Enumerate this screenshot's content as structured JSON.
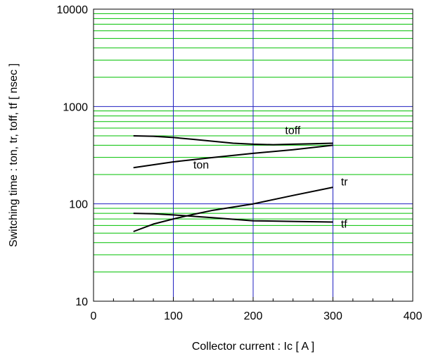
{
  "chart_data": {
    "type": "line",
    "title": "",
    "xlabel": "Collector current : Ic [ A ]",
    "ylabel": "Switching time : ton, tr, toff, tf [ nsec ]",
    "xlim": [
      0,
      400
    ],
    "ylim": [
      10,
      10000
    ],
    "y_scale": "log",
    "x_ticks": [
      0,
      100,
      200,
      300,
      400
    ],
    "x_tick_labels": [
      "0",
      "100",
      "200",
      "300",
      "400"
    ],
    "y_ticks": [
      10,
      100,
      1000,
      10000
    ],
    "y_tick_labels": [
      "10",
      "100",
      "1000",
      "10000"
    ],
    "grid": true,
    "major_grid_color": "#2020c0",
    "minor_grid_color": "#00c000",
    "series": [
      {
        "name": "toff",
        "color": "#000000",
        "x": [
          50,
          75,
          100,
          125,
          150,
          175,
          200,
          225,
          250,
          275,
          300
        ],
        "y": [
          500,
          495,
          480,
          460,
          440,
          420,
          410,
          405,
          410,
          415,
          420
        ]
      },
      {
        "name": "ton",
        "color": "#000000",
        "x": [
          50,
          100,
          150,
          200,
          250,
          300
        ],
        "y": [
          235,
          270,
          300,
          330,
          360,
          400
        ]
      },
      {
        "name": "tr",
        "color": "#000000",
        "x": [
          50,
          75,
          100,
          125,
          150,
          200,
          250,
          300
        ],
        "y": [
          52,
          62,
          70,
          78,
          86,
          100,
          122,
          148
        ]
      },
      {
        "name": "tf",
        "color": "#000000",
        "x": [
          50,
          75,
          100,
          150,
          200,
          250,
          300
        ],
        "y": [
          80,
          79,
          77,
          72,
          67,
          66,
          65
        ]
      }
    ],
    "annotations": [
      {
        "text": "toff",
        "x": 240,
        "y": 520
      },
      {
        "text": "ton",
        "x": 125,
        "y": 230
      },
      {
        "text": "tr",
        "x": 310,
        "y": 155
      },
      {
        "text": "tf",
        "x": 310,
        "y": 57
      }
    ]
  }
}
